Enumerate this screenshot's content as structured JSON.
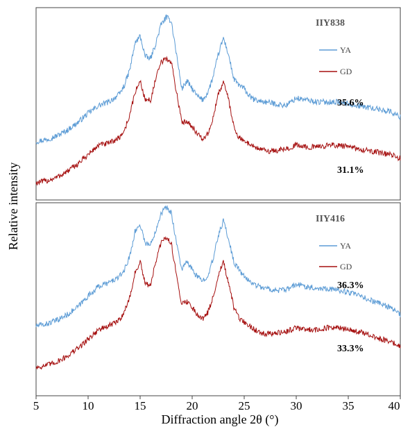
{
  "chart_data": {
    "type": "line",
    "xlabel": "Diffraction angle 2θ (°)",
    "ylabel": "Relative intensity",
    "xlim": [
      5,
      40
    ],
    "xticks": [
      "5",
      "10",
      "15",
      "20",
      "25",
      "30",
      "35",
      "40"
    ],
    "grid": false,
    "panels": [
      {
        "title": "IIY838",
        "legend": {
          "position": "top-right",
          "entries": [
            {
              "name": "YA",
              "color": "#5b9bd5"
            },
            {
              "name": "GD",
              "color": "#a50f0f"
            }
          ]
        },
        "annotations": [
          "35.6%",
          "31.1%"
        ],
        "series": [
          {
            "name": "YA",
            "color": "#5b9bd5",
            "x": [
              5,
              6,
              7,
              8,
              9,
              10,
              11,
              12,
              13,
              13.5,
              14,
              14.5,
              15,
              15.5,
              16,
              16.5,
              17,
              17.5,
              18,
              18.5,
              19,
              19.5,
              20,
              20.5,
              21,
              21.5,
              22,
              22.5,
              23,
              23.5,
              24,
              24.5,
              25,
              25.5,
              26,
              27,
              28,
              29,
              30,
              31,
              32,
              33,
              34,
              35,
              36,
              37,
              38,
              39,
              40
            ],
            "y": [
              0.3,
              0.31,
              0.33,
              0.36,
              0.4,
              0.45,
              0.49,
              0.51,
              0.55,
              0.6,
              0.68,
              0.82,
              0.86,
              0.75,
              0.74,
              0.82,
              0.92,
              0.96,
              0.94,
              0.76,
              0.58,
              0.62,
              0.58,
              0.54,
              0.52,
              0.56,
              0.64,
              0.76,
              0.85,
              0.76,
              0.63,
              0.6,
              0.58,
              0.54,
              0.52,
              0.51,
              0.5,
              0.49,
              0.53,
              0.52,
              0.51,
              0.51,
              0.51,
              0.5,
              0.49,
              0.48,
              0.47,
              0.46,
              0.43
            ]
          },
          {
            "name": "GD",
            "color": "#a50f0f",
            "x": [
              5,
              6,
              7,
              8,
              9,
              10,
              11,
              12,
              13,
              13.5,
              14,
              14.5,
              15,
              15.5,
              16,
              16.5,
              17,
              17.5,
              18,
              18.5,
              19,
              19.5,
              20,
              20.5,
              21,
              21.5,
              22,
              22.5,
              23,
              23.5,
              24,
              24.5,
              25,
              25.5,
              26,
              27,
              28,
              29,
              30,
              31,
              32,
              33,
              34,
              35,
              36,
              37,
              38,
              39,
              40
            ],
            "y": [
              0.08,
              0.09,
              0.11,
              0.14,
              0.18,
              0.23,
              0.28,
              0.29,
              0.32,
              0.36,
              0.44,
              0.56,
              0.62,
              0.52,
              0.52,
              0.63,
              0.72,
              0.74,
              0.72,
              0.56,
              0.4,
              0.41,
              0.38,
              0.34,
              0.31,
              0.34,
              0.42,
              0.55,
              0.62,
              0.52,
              0.38,
              0.32,
              0.3,
              0.29,
              0.27,
              0.25,
              0.25,
              0.26,
              0.28,
              0.27,
              0.27,
              0.28,
              0.28,
              0.27,
              0.26,
              0.25,
              0.24,
              0.23,
              0.21
            ]
          }
        ]
      },
      {
        "title": "IIY416",
        "legend": {
          "position": "top-right",
          "entries": [
            {
              "name": "YA",
              "color": "#5b9bd5"
            },
            {
              "name": "GD",
              "color": "#a50f0f"
            }
          ]
        },
        "annotations": [
          "36.3%",
          "33.3%"
        ],
        "series": [
          {
            "name": "YA",
            "color": "#5b9bd5",
            "x": [
              5,
              6,
              7,
              8,
              9,
              10,
              11,
              12,
              13,
              13.5,
              14,
              14.5,
              15,
              15.5,
              16,
              16.5,
              17,
              17.5,
              18,
              18.5,
              19,
              19.5,
              20,
              20.5,
              21,
              21.5,
              22,
              22.5,
              23,
              23.5,
              24,
              24.5,
              25,
              25.5,
              26,
              27,
              28,
              29,
              30,
              31,
              32,
              33,
              34,
              35,
              36,
              37,
              38,
              39,
              40
            ],
            "y": [
              0.36,
              0.37,
              0.39,
              0.42,
              0.46,
              0.52,
              0.57,
              0.59,
              0.62,
              0.66,
              0.73,
              0.86,
              0.9,
              0.8,
              0.79,
              0.87,
              0.96,
              0.99,
              0.96,
              0.8,
              0.66,
              0.7,
              0.66,
              0.62,
              0.6,
              0.63,
              0.71,
              0.84,
              0.92,
              0.82,
              0.7,
              0.66,
              0.62,
              0.6,
              0.58,
              0.56,
              0.55,
              0.55,
              0.58,
              0.57,
              0.56,
              0.56,
              0.55,
              0.54,
              0.52,
              0.5,
              0.48,
              0.46,
              0.42
            ]
          },
          {
            "name": "GD",
            "color": "#a50f0f",
            "x": [
              5,
              6,
              7,
              8,
              9,
              10,
              11,
              12,
              13,
              13.5,
              14,
              14.5,
              15,
              15.5,
              16,
              16.5,
              17,
              17.5,
              18,
              18.5,
              19,
              19.5,
              20,
              20.5,
              21,
              21.5,
              22,
              22.5,
              23,
              23.5,
              24,
              24.5,
              25,
              25.5,
              26,
              27,
              28,
              29,
              30,
              31,
              32,
              33,
              34,
              35,
              36,
              37,
              38,
              39,
              40
            ],
            "y": [
              0.14,
              0.15,
              0.17,
              0.2,
              0.24,
              0.29,
              0.34,
              0.36,
              0.39,
              0.44,
              0.51,
              0.64,
              0.7,
              0.58,
              0.58,
              0.7,
              0.8,
              0.83,
              0.8,
              0.62,
              0.48,
              0.49,
              0.46,
              0.42,
              0.4,
              0.43,
              0.51,
              0.63,
              0.7,
              0.58,
              0.46,
              0.4,
              0.38,
              0.36,
              0.34,
              0.32,
              0.32,
              0.33,
              0.35,
              0.34,
              0.34,
              0.35,
              0.35,
              0.34,
              0.33,
              0.31,
              0.29,
              0.28,
              0.25
            ]
          }
        ]
      }
    ]
  }
}
